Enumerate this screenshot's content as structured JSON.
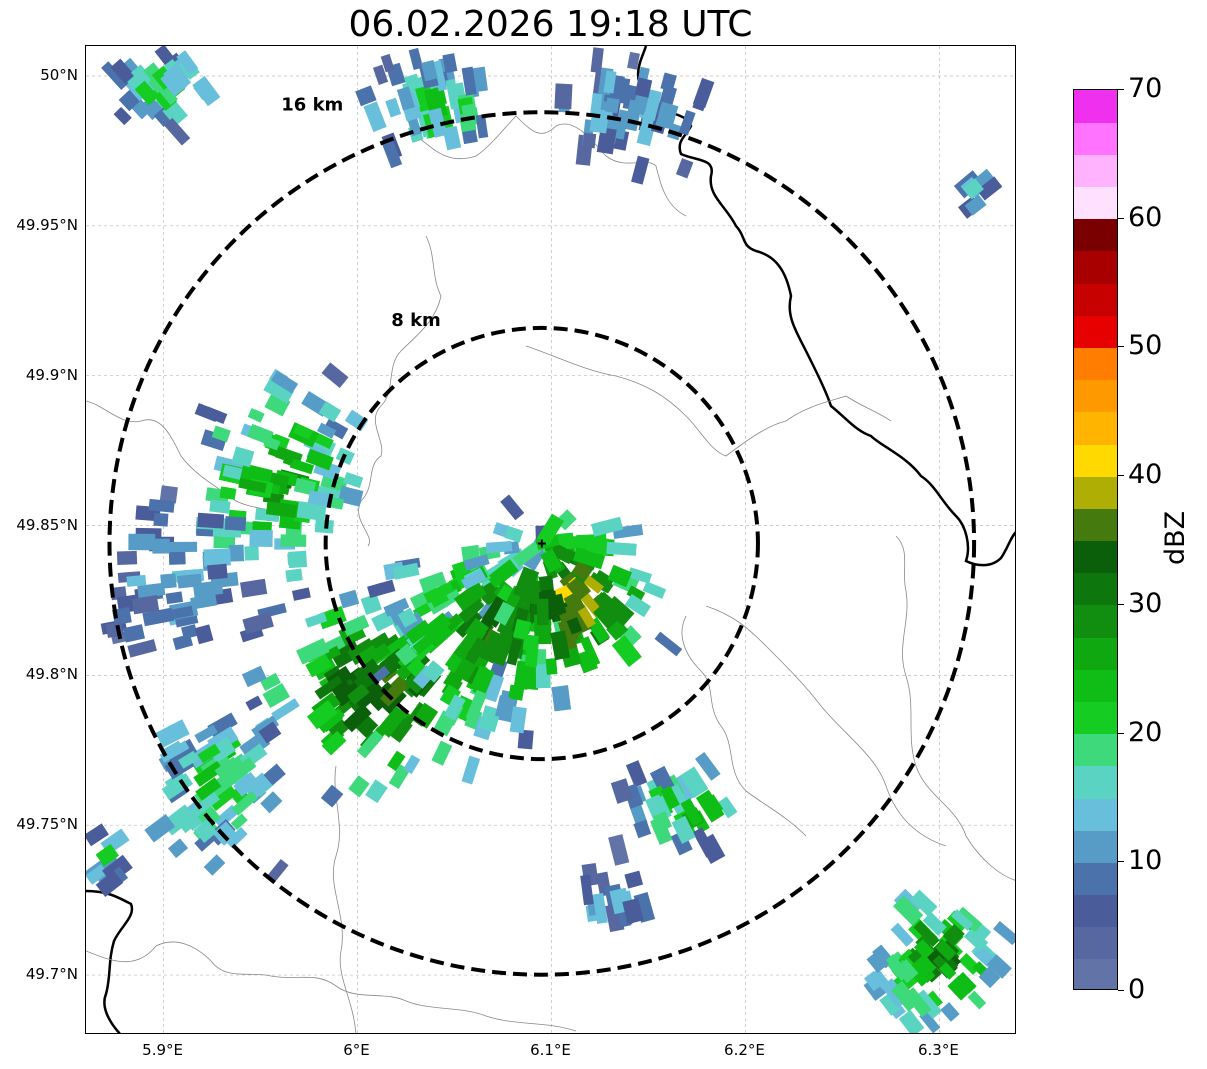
{
  "title": "06.02.2026 19:18 UTC",
  "map": {
    "lon_range": [
      5.86,
      6.34
    ],
    "lat_range": [
      49.68,
      50.01
    ],
    "radar_site": {
      "lon": 6.095,
      "lat": 49.844
    },
    "range_rings": [
      {
        "radius_km": 8,
        "label": "8 km"
      },
      {
        "radius_km": 16,
        "label": "16 km"
      }
    ],
    "gridlines": true,
    "lat_ticks": [
      {
        "value": 50.0,
        "label": "50°N"
      },
      {
        "value": 49.95,
        "label": "49.95°N"
      },
      {
        "value": 49.9,
        "label": "49.9°N"
      },
      {
        "value": 49.85,
        "label": "49.85°N"
      },
      {
        "value": 49.8,
        "label": "49.8°N"
      },
      {
        "value": 49.75,
        "label": "49.75°N"
      },
      {
        "value": 49.7,
        "label": "49.7°N"
      }
    ],
    "lon_ticks": [
      {
        "value": 5.9,
        "label": "5.9°E"
      },
      {
        "value": 6.0,
        "label": "6°E"
      },
      {
        "value": 6.1,
        "label": "6.1°E"
      },
      {
        "value": 6.2,
        "label": "6.2°E"
      },
      {
        "value": 6.3,
        "label": "6.3°E"
      }
    ],
    "echo_cells": [
      {
        "lon": 6.01,
        "lat": 49.795,
        "spread_lon": 0.07,
        "spread_lat": 0.035,
        "peak_dbz": 38,
        "count": 110
      },
      {
        "lon": 6.07,
        "lat": 49.815,
        "spread_lon": 0.06,
        "spread_lat": 0.035,
        "peak_dbz": 34,
        "count": 110
      },
      {
        "lon": 6.11,
        "lat": 49.825,
        "spread_lon": 0.05,
        "spread_lat": 0.03,
        "peak_dbz": 42,
        "count": 90
      },
      {
        "lon": 5.96,
        "lat": 49.865,
        "spread_lon": 0.05,
        "spread_lat": 0.04,
        "peak_dbz": 28,
        "count": 90
      },
      {
        "lon": 5.91,
        "lat": 49.83,
        "spread_lon": 0.04,
        "spread_lat": 0.03,
        "peak_dbz": 14,
        "count": 50
      },
      {
        "lon": 5.93,
        "lat": 49.765,
        "spread_lon": 0.04,
        "spread_lat": 0.03,
        "peak_dbz": 24,
        "count": 60
      },
      {
        "lon": 6.04,
        "lat": 49.99,
        "spread_lon": 0.05,
        "spread_lat": 0.02,
        "peak_dbz": 20,
        "count": 55
      },
      {
        "lon": 6.14,
        "lat": 49.99,
        "spread_lon": 0.04,
        "spread_lat": 0.02,
        "peak_dbz": 14,
        "count": 45
      },
      {
        "lon": 5.9,
        "lat": 49.995,
        "spread_lon": 0.03,
        "spread_lat": 0.015,
        "peak_dbz": 22,
        "count": 35
      },
      {
        "lon": 6.17,
        "lat": 49.755,
        "spread_lon": 0.04,
        "spread_lat": 0.015,
        "peak_dbz": 26,
        "count": 35
      },
      {
        "lon": 6.13,
        "lat": 49.725,
        "spread_lon": 0.02,
        "spread_lat": 0.01,
        "peak_dbz": 14,
        "count": 15
      },
      {
        "lon": 6.3,
        "lat": 49.705,
        "spread_lon": 0.04,
        "spread_lat": 0.025,
        "peak_dbz": 32,
        "count": 70
      },
      {
        "lon": 6.32,
        "lat": 49.96,
        "spread_lon": 0.012,
        "spread_lat": 0.008,
        "peak_dbz": 16,
        "count": 8
      },
      {
        "lon": 5.87,
        "lat": 49.74,
        "spread_lon": 0.01,
        "spread_lat": 0.015,
        "peak_dbz": 20,
        "count": 10
      }
    ]
  },
  "colorbar": {
    "label": "dBZ",
    "range": [
      0,
      70
    ],
    "tick_labels": [
      "0",
      "10",
      "20",
      "30",
      "40",
      "50",
      "60",
      "70"
    ],
    "colors": [
      "#6273a8",
      "#57679f",
      "#4a5d9a",
      "#4b72aa",
      "#579cc6",
      "#68bfdc",
      "#5bd3c2",
      "#3dd97a",
      "#14cc22",
      "#0fbd17",
      "#10a811",
      "#118d0f",
      "#0d760d",
      "#0b5f0b",
      "#447a0e",
      "#aeae05",
      "#ffd900",
      "#ffb500",
      "#ff9900",
      "#ff7d00",
      "#e60000",
      "#c70000",
      "#a80000",
      "#7a0000",
      "#ffe0ff",
      "#ffb3ff",
      "#ff73ff",
      "#ef31ef"
    ]
  }
}
